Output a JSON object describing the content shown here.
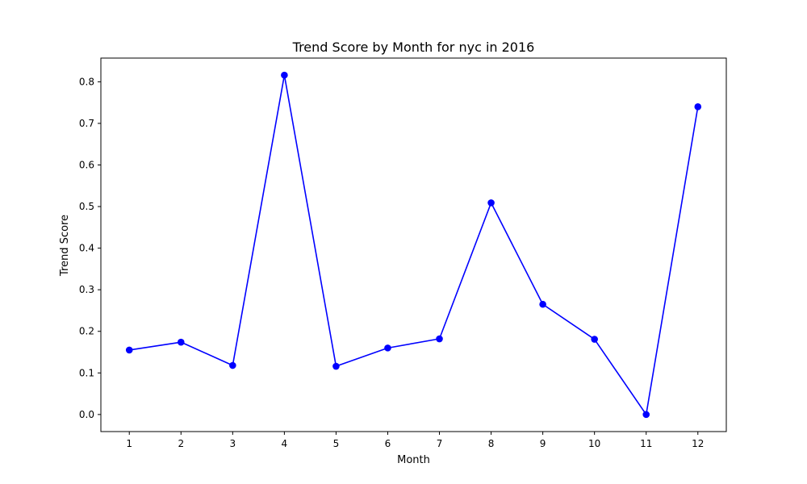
{
  "chart_data": {
    "type": "line",
    "title": "Trend Score by Month for nyc in 2016",
    "xlabel": "Month",
    "ylabel": "Trend Score",
    "x": [
      1,
      2,
      3,
      4,
      5,
      6,
      7,
      8,
      9,
      10,
      11,
      12
    ],
    "x_tick_labels": [
      "1",
      "2",
      "3",
      "4",
      "5",
      "6",
      "7",
      "8",
      "9",
      "10",
      "11",
      "12"
    ],
    "y_tick_labels": [
      "0.0",
      "0.1",
      "0.2",
      "0.3",
      "0.4",
      "0.5",
      "0.6",
      "0.7",
      "0.8"
    ],
    "series": [
      {
        "color": "#0000ff",
        "marker": "circle",
        "values": [
          0.155,
          0.174,
          0.118,
          0.816,
          0.116,
          0.16,
          0.182,
          0.509,
          0.265,
          0.181,
          0.0,
          0.74
        ]
      }
    ],
    "xlim": [
      0.45,
      12.55
    ],
    "ylim": [
      -0.041,
      0.857
    ],
    "grid": false,
    "legend": false
  }
}
